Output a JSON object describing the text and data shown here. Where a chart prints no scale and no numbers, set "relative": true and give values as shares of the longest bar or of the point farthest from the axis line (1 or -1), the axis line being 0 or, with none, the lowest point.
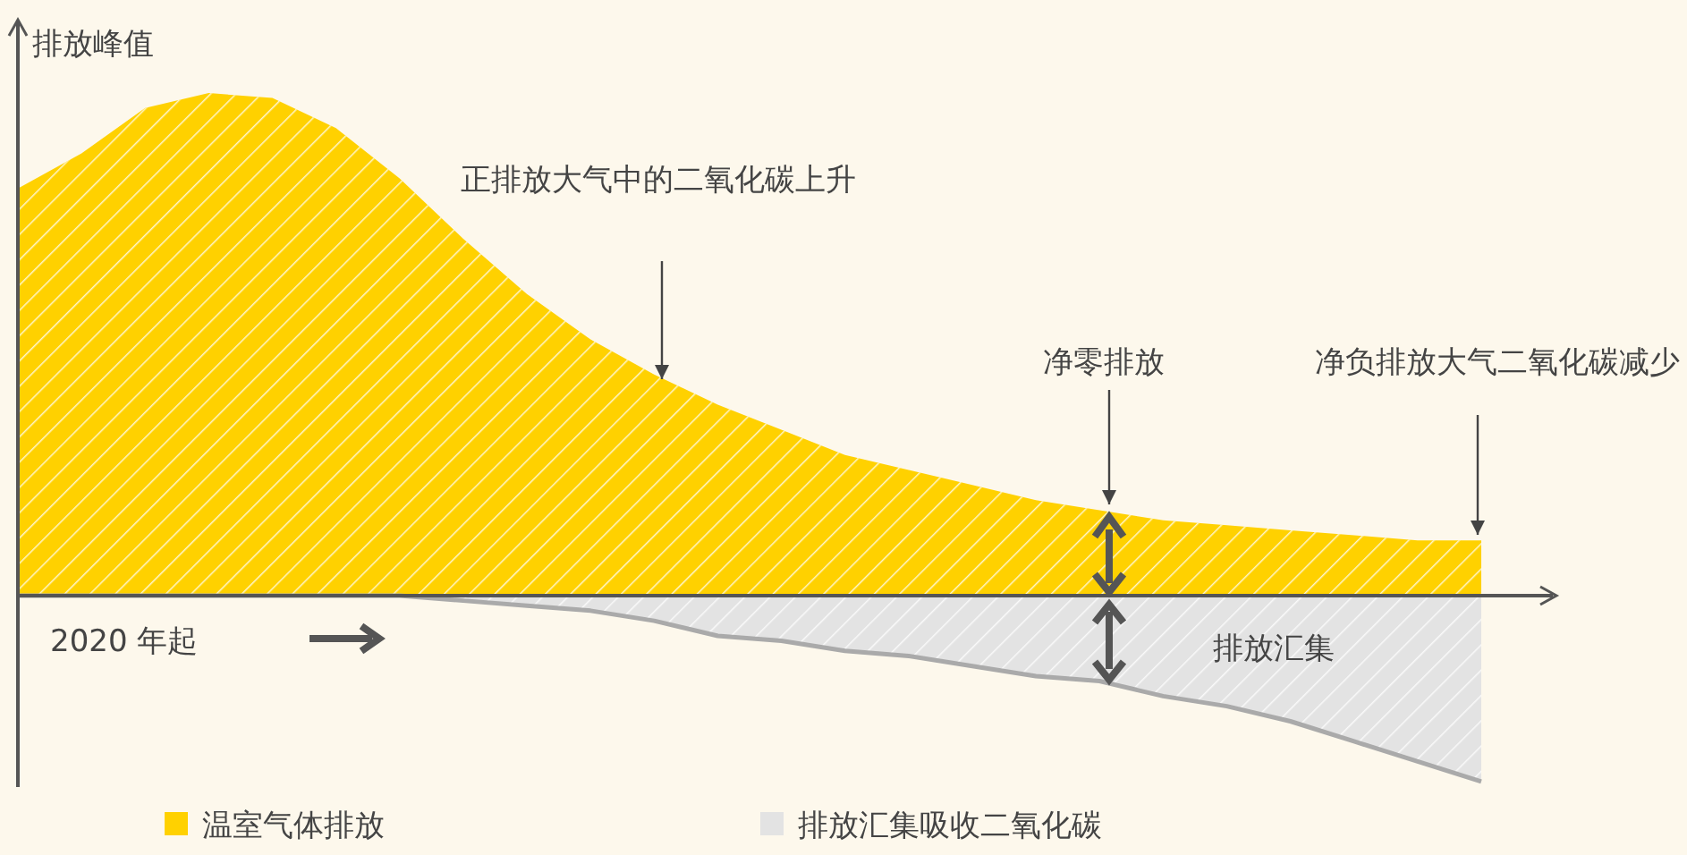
{
  "chart_data": {
    "type": "area",
    "relative": true,
    "ylabel": "排放峰值",
    "legend": "bottom",
    "categories": [
      null,
      null,
      null,
      null,
      null,
      null,
      null,
      null,
      null,
      null,
      null,
      null,
      null,
      null,
      null,
      null,
      null,
      null,
      null,
      null,
      null,
      null,
      null,
      null
    ],
    "series": [
      {
        "name": "温室气体排放",
        "color": "#ffd100",
        "values": [
          0.81,
          0.88,
          0.97,
          1.0,
          0.99,
          0.93,
          0.83,
          0.71,
          0.6,
          0.51,
          0.44,
          0.38,
          0.33,
          0.28,
          0.25,
          0.22,
          0.19,
          0.17,
          0.15,
          0.14,
          0.13,
          0.12,
          0.11,
          0.11
        ]
      },
      {
        "name": "排放汇集吸收二氧化碳",
        "color": "#e3e3e3",
        "values": [
          0,
          0,
          0,
          0,
          0,
          0,
          0,
          -0.01,
          -0.02,
          -0.03,
          -0.05,
          -0.08,
          -0.09,
          -0.11,
          -0.12,
          -0.14,
          -0.16,
          -0.17,
          -0.2,
          -0.22,
          -0.25,
          -0.29,
          -0.33,
          -0.37
        ]
      }
    ],
    "annotations": [
      "正排放大气中的二氧化碳上升",
      "净零排放",
      "净负排放大气二氧化碳减少",
      "2020 年起",
      "排放汇集"
    ]
  }
}
